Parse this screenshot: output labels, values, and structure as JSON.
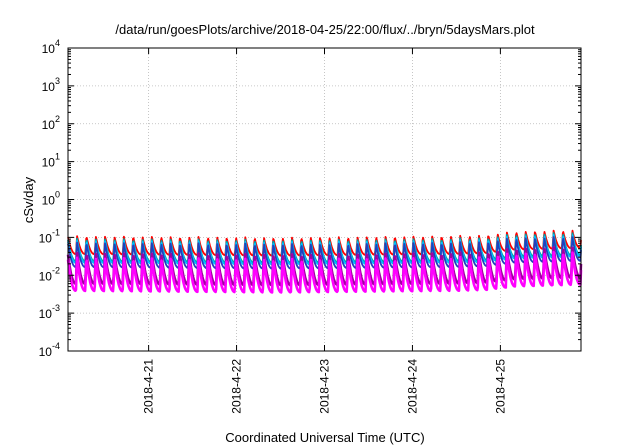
{
  "chart_data": {
    "type": "line",
    "title": "/data/run/goesPlots/archive/2018-04-25/22:00/flux/../bryn/5daysMars.plot",
    "xlabel": "Coordinated Universal Time (UTC)",
    "ylabel": "cSv/day",
    "yscale": "log",
    "ylim": [
      0.0001,
      10000
    ],
    "y_ticks": [
      {
        "base": "10",
        "exp": "-4"
      },
      {
        "base": "10",
        "exp": "-3"
      },
      {
        "base": "10",
        "exp": "-2"
      },
      {
        "base": "10",
        "exp": "-1"
      },
      {
        "base": "10",
        "exp": "0"
      },
      {
        "base": "10",
        "exp": "1"
      },
      {
        "base": "10",
        "exp": "2"
      },
      {
        "base": "10",
        "exp": "3"
      },
      {
        "base": "10",
        "exp": "4"
      }
    ],
    "xlim": [
      "2018-04-20 02:00",
      "2018-04-25 22:00"
    ],
    "x_ticks": [
      "2018-4-21",
      "2018-4-22",
      "2018-4-23",
      "2018-4-24",
      "2018-4-25"
    ],
    "grid": true,
    "oscillation_period_hours": 2.55,
    "series": [
      {
        "color": "#ff0000",
        "peak": 0.11,
        "trough_ratio": 0.33
      },
      {
        "color": "#00a0a0",
        "peak": 0.095,
        "trough_ratio": 0.25
      },
      {
        "color": "#00c0ff",
        "peak": 0.085,
        "trough_ratio": 0.25
      },
      {
        "color": "#2040c0",
        "peak": 0.075,
        "trough_ratio": 0.22
      },
      {
        "color": "#a000a0",
        "peak": 0.04,
        "trough_ratio": 0.15
      },
      {
        "color": "#ff00ff",
        "peak": 0.03,
        "trough_ratio": 0.13
      }
    ],
    "envelope_factors": [
      {
        "x": "2018-04-20 02:00",
        "factor": 1.0
      },
      {
        "x": "2018-04-22 12:00",
        "factor": 0.9
      },
      {
        "x": "2018-04-24 12:00",
        "factor": 1.0
      },
      {
        "x": "2018-04-24 20:00",
        "factor": 1.05
      },
      {
        "x": "2018-04-25 04:00",
        "factor": 1.3
      },
      {
        "x": "2018-04-25 22:00",
        "factor": 1.45
      }
    ]
  }
}
